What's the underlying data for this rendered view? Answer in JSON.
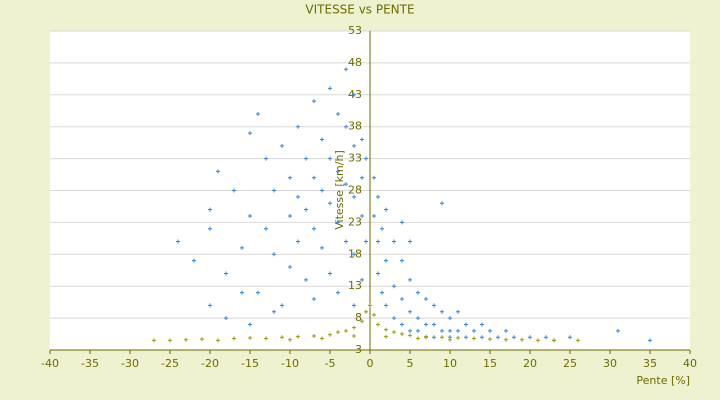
{
  "chart_data": {
    "type": "scatter",
    "title": "VITESSE vs PENTE",
    "xlabel": "Pente [%]",
    "ylabel": "Vitesse [km/h]",
    "xlim": [
      -40,
      40
    ],
    "xticks": [
      -40,
      -35,
      -30,
      -25,
      -20,
      -15,
      -10,
      -5,
      0,
      5,
      10,
      15,
      20,
      25,
      30,
      35,
      40
    ],
    "ylim": [
      3,
      53
    ],
    "yticks": [
      3,
      8,
      13,
      18,
      23,
      28,
      33,
      38,
      43,
      48,
      53
    ],
    "grid": true,
    "series": [
      {
        "color": "#3a86d0",
        "x": [
          -24,
          -22,
          -20,
          -20,
          -19,
          -18,
          -17,
          -16,
          -15,
          -15,
          -14,
          -14,
          -13,
          -13,
          -12,
          -12,
          -11,
          -11,
          -10,
          -10,
          -10,
          -9,
          -9,
          -9,
          -8,
          -8,
          -8,
          -7,
          -7,
          -7,
          -7,
          -6,
          -6,
          -6,
          -5,
          -5,
          -5,
          -5,
          -4,
          -4,
          -4,
          -4,
          -3,
          -3,
          -3,
          -3,
          -2,
          -2,
          -2,
          -2,
          -2,
          -1,
          -1,
          -1,
          -1,
          -0.5,
          -0.5,
          -18,
          -15,
          -12,
          -20,
          -16,
          0.5,
          0.5,
          1,
          1,
          1,
          1.5,
          1.5,
          2,
          2,
          2,
          3,
          3,
          3,
          4,
          4,
          4,
          5,
          5,
          5,
          6,
          6,
          6,
          7,
          7,
          7,
          8,
          8,
          8,
          9,
          9,
          10,
          10,
          10,
          11,
          11,
          12,
          12,
          13,
          14,
          14,
          15,
          16,
          17,
          18,
          20,
          22,
          23,
          25,
          31,
          35,
          9,
          5,
          4
        ],
        "values": [
          20,
          17,
          22,
          25,
          31,
          15,
          28,
          19,
          37,
          24,
          40,
          12,
          33,
          22,
          28,
          18,
          35,
          10,
          30,
          24,
          16,
          38,
          27,
          20,
          33,
          25,
          14,
          42,
          30,
          22,
          11,
          36,
          28,
          19,
          44,
          33,
          26,
          15,
          40,
          31,
          23,
          12,
          47,
          38,
          29,
          20,
          43,
          35,
          27,
          18,
          10,
          36,
          30,
          24,
          14,
          33,
          20,
          8,
          7,
          9,
          10,
          12,
          30,
          24,
          27,
          20,
          15,
          22,
          12,
          25,
          17,
          10,
          20,
          13,
          8,
          17,
          11,
          7,
          14,
          9,
          6,
          12,
          8,
          6,
          11,
          7,
          5,
          10,
          7,
          5,
          9,
          6,
          8,
          6,
          5,
          9,
          6,
          7,
          5,
          6,
          7,
          5,
          6,
          5,
          6,
          5,
          5,
          5,
          4.5,
          5,
          6,
          4.5,
          26,
          20,
          23
        ]
      },
      {
        "color": "#9a9a10",
        "x": [
          -27,
          -25,
          -23,
          -21,
          -19,
          -17,
          -15,
          -13,
          -11,
          -9,
          -7,
          -5,
          -4,
          -3,
          -2,
          -1,
          -0.5,
          0,
          0.5,
          1,
          2,
          3,
          4,
          5,
          7,
          9,
          11,
          13,
          15,
          17,
          19,
          21,
          23,
          26,
          -10,
          -6,
          -2,
          2,
          6,
          10
        ],
        "values": [
          4.5,
          4.5,
          4.6,
          4.7,
          4.5,
          4.8,
          4.9,
          4.8,
          5,
          5.1,
          5.2,
          5.4,
          5.8,
          6,
          6.5,
          7.5,
          9,
          10,
          8.5,
          7,
          6.2,
          5.8,
          5.5,
          5.3,
          5.1,
          5,
          4.9,
          4.8,
          4.7,
          4.6,
          4.6,
          4.5,
          4.5,
          4.5,
          4.6,
          4.8,
          5.2,
          5.1,
          4.8,
          4.6
        ]
      }
    ]
  }
}
